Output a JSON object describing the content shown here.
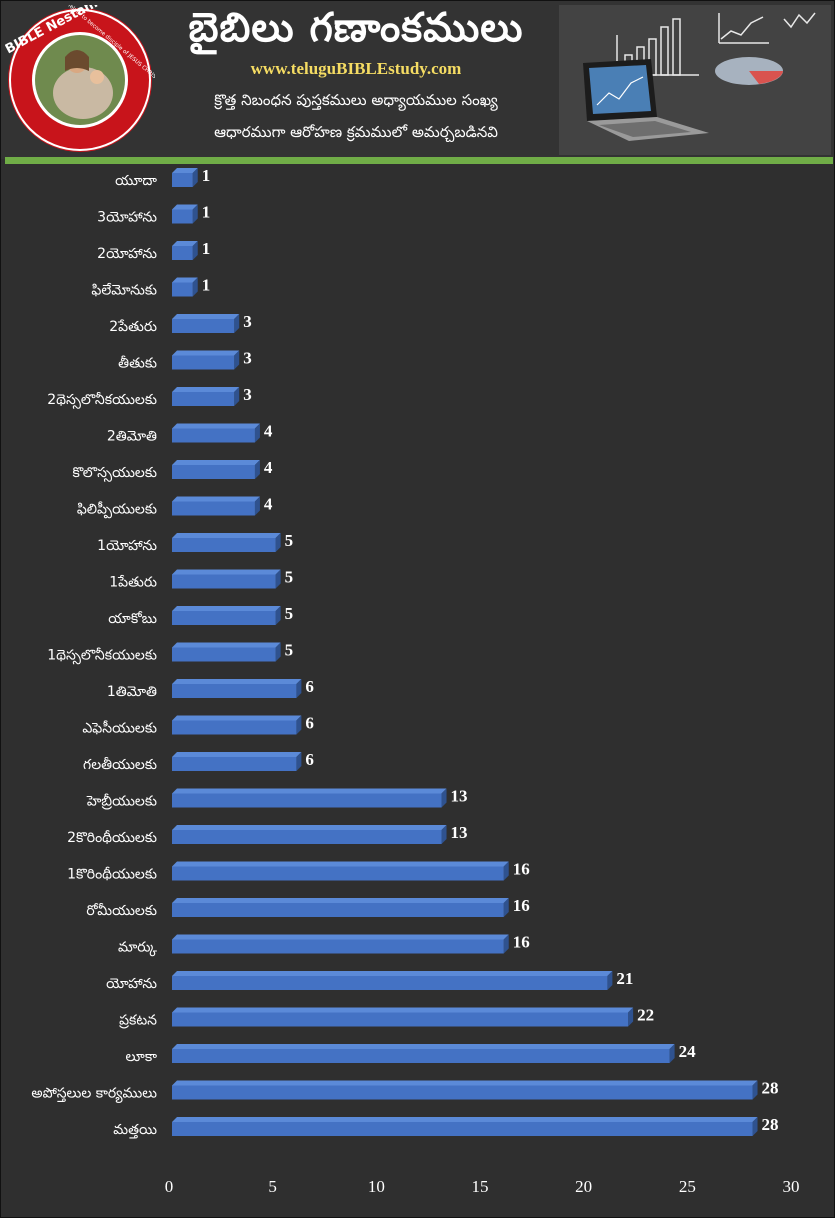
{
  "header": {
    "title": "బైబిలు గణాంకములు",
    "website": "www.teluguBIBLEstudy.com",
    "subtitle_line1": "క్రొత్త నిబంధన పుస్తకములు అధ్యాయముల సంఖ్య",
    "subtitle_line2": "ఆధారముగా ఆరోహణ క్రమములో అమర్చబడినవి",
    "logo": {
      "name": "BIBLE Nestam",
      "ring_text": "Helper to become disciple of JESUS CHRIST"
    }
  },
  "colors": {
    "background": "#2f2f2f",
    "bar_front": "#4472c4",
    "bar_top": "#5b8ad8",
    "bar_side": "#2f528f",
    "divider": "#70ad47",
    "website_text": "#f5dc63"
  },
  "chart_data": {
    "type": "bar",
    "orientation": "horizontal",
    "categories": [
      "యూదా",
      "3యోహాను",
      "2యోహాను",
      "ఫిలేమోనుకు",
      "2పేతురు",
      "తీతుకు",
      "2థెస్సలొనీకయులకు",
      "2తిమోతి",
      "కొలొస్సయులకు",
      "ఫిలిప్పీయులకు",
      "1యోహాను",
      "1పేతురు",
      "యాకోబు",
      "1థెస్సలొనీకయులకు",
      "1తిమోతి",
      "ఎఫెసీయులకు",
      "గలతీయులకు",
      "హెబ్రీయులకు",
      "2కొరింథీయులకు",
      "1కొరింథీయులకు",
      "రోమీయులకు",
      "మార్కు",
      "యోహాను",
      "ప్రకటన",
      "లూకా",
      "అపోస్తలుల కార్యములు",
      "మత్తయి"
    ],
    "values": [
      1,
      1,
      1,
      1,
      3,
      3,
      3,
      4,
      4,
      4,
      5,
      5,
      5,
      5,
      6,
      6,
      6,
      13,
      13,
      16,
      16,
      16,
      21,
      22,
      24,
      28,
      28
    ],
    "xlim": [
      0,
      30
    ],
    "xticks": [
      0,
      5,
      10,
      15,
      20,
      25,
      30
    ],
    "gridlines": false,
    "legend": "none",
    "bar_style": "3d"
  }
}
